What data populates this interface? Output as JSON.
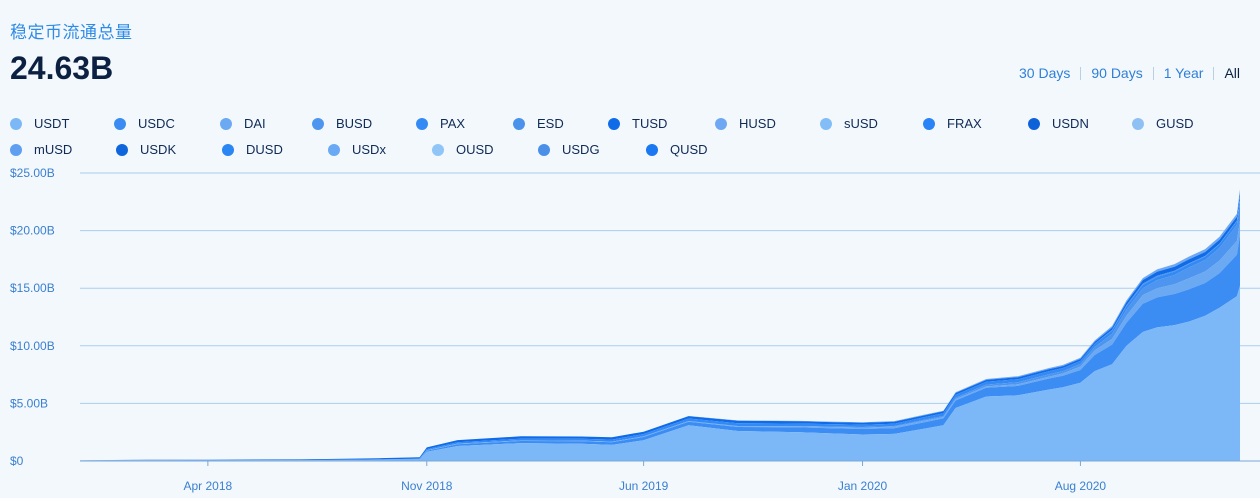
{
  "header": {
    "title": "稳定币流通总量",
    "total": "24.63B"
  },
  "ranges": [
    {
      "label": "30 Days",
      "active": false
    },
    {
      "label": "90 Days",
      "active": false
    },
    {
      "label": "1 Year",
      "active": false
    },
    {
      "label": "All",
      "active": true
    }
  ],
  "legend": [
    {
      "name": "USDT",
      "color": "#7db8f6"
    },
    {
      "name": "USDC",
      "color": "#3a8bf2"
    },
    {
      "name": "DAI",
      "color": "#6ba9f3"
    },
    {
      "name": "BUSD",
      "color": "#4d95ef"
    },
    {
      "name": "PAX",
      "color": "#338af5"
    },
    {
      "name": "ESD",
      "color": "#4a92ea"
    },
    {
      "name": "TUSD",
      "color": "#0f6be8"
    },
    {
      "name": "HUSD",
      "color": "#6fa8f2"
    },
    {
      "name": "sUSD",
      "color": "#82bdf7"
    },
    {
      "name": "FRAX",
      "color": "#2a84f5"
    },
    {
      "name": "USDN",
      "color": "#0e62d9"
    },
    {
      "name": "GUSD",
      "color": "#8fc0f4"
    },
    {
      "name": "mUSD",
      "color": "#5f9ff2"
    },
    {
      "name": "USDK",
      "color": "#0f66dc"
    },
    {
      "name": "DUSD",
      "color": "#2a86f3"
    },
    {
      "name": "USDx",
      "color": "#6aa9f4"
    },
    {
      "name": "OUSD",
      "color": "#90c5f8"
    },
    {
      "name": "USDG",
      "color": "#4a90e8"
    },
    {
      "name": "QUSD",
      "color": "#1a78f0"
    }
  ],
  "chart_data": {
    "type": "area",
    "stacked": true,
    "ylabel": "",
    "xlabel": "",
    "ylim": [
      0,
      25
    ],
    "y_tick_labels": [
      "$0",
      "$5.00B",
      "$10.00B",
      "$15.00B",
      "$20.00B",
      "$25.00B"
    ],
    "y_tick_values": [
      0,
      5,
      10,
      15,
      20,
      25
    ],
    "x_tick_labels": [
      "Apr 2018",
      "Nov 2018",
      "Jun 2019",
      "Jan 2020",
      "Aug 2020"
    ],
    "x_tick_values": [
      "2018-04-01",
      "2018-11-01",
      "2019-06-01",
      "2020-01-01",
      "2020-08-01"
    ],
    "x_range": [
      "2017-11-27",
      "2021-01-04"
    ],
    "x": [
      "2017-11-27",
      "2018-02-01",
      "2018-04-01",
      "2018-07-01",
      "2018-09-15",
      "2018-10-25",
      "2018-11-01",
      "2018-12-01",
      "2019-02-01",
      "2019-04-01",
      "2019-05-01",
      "2019-06-01",
      "2019-07-15",
      "2019-09-01",
      "2019-11-01",
      "2019-12-01",
      "2020-01-01",
      "2020-02-01",
      "2020-03-01",
      "2020-03-20",
      "2020-04-01",
      "2020-05-01",
      "2020-06-01",
      "2020-07-01",
      "2020-07-15",
      "2020-08-01",
      "2020-08-15",
      "2020-09-01",
      "2020-09-15",
      "2020-10-01",
      "2020-10-15",
      "2020-11-01",
      "2020-11-15",
      "2020-12-01",
      "2020-12-15",
      "2021-01-01",
      "2021-01-04"
    ],
    "series": [
      {
        "name": "USDT",
        "color": "#7cb8f7",
        "values": [
          0.05,
          0.06,
          0.05,
          0.06,
          0.07,
          0.1,
          0.8,
          1.3,
          1.55,
          1.5,
          1.4,
          1.8,
          3.1,
          2.6,
          2.5,
          2.4,
          2.3,
          2.35,
          2.8,
          3.1,
          4.6,
          5.6,
          5.7,
          6.2,
          6.4,
          6.8,
          7.8,
          8.4,
          10.0,
          11.2,
          11.6,
          11.8,
          12.1,
          12.6,
          13.3,
          14.3,
          15.2
        ]
      },
      {
        "name": "USDC",
        "color": "#3b8df3",
        "values": [
          0.0,
          0.0,
          0.0,
          0.0,
          0.02,
          0.05,
          0.09,
          0.16,
          0.19,
          0.22,
          0.22,
          0.28,
          0.3,
          0.35,
          0.42,
          0.45,
          0.48,
          0.5,
          0.55,
          0.6,
          0.65,
          0.75,
          0.82,
          0.95,
          1.0,
          1.1,
          1.4,
          1.7,
          2.0,
          2.45,
          2.6,
          2.7,
          2.8,
          2.85,
          3.0,
          3.6,
          4.4
        ]
      },
      {
        "name": "DAI",
        "color": "#6ba9f3",
        "values": [
          0.01,
          0.02,
          0.02,
          0.02,
          0.03,
          0.03,
          0.04,
          0.05,
          0.05,
          0.05,
          0.06,
          0.06,
          0.06,
          0.07,
          0.08,
          0.1,
          0.12,
          0.13,
          0.14,
          0.11,
          0.12,
          0.13,
          0.14,
          0.17,
          0.2,
          0.3,
          0.4,
          0.5,
          0.6,
          0.75,
          0.8,
          0.85,
          0.95,
          1.0,
          1.1,
          1.2,
          1.3
        ]
      },
      {
        "name": "BUSD",
        "color": "#4d95ef",
        "values": [
          0.0,
          0.0,
          0.0,
          0.0,
          0.0,
          0.0,
          0.0,
          0.0,
          0.0,
          0.0,
          0.0,
          0.0,
          0.01,
          0.02,
          0.03,
          0.04,
          0.05,
          0.06,
          0.08,
          0.1,
          0.12,
          0.15,
          0.18,
          0.2,
          0.2,
          0.22,
          0.3,
          0.45,
          0.55,
          0.6,
          0.7,
          0.8,
          0.95,
          1.0,
          1.1,
          1.4,
          1.7
        ]
      },
      {
        "name": "PAX",
        "color": "#338af5",
        "values": [
          0.0,
          0.0,
          0.0,
          0.0,
          0.02,
          0.03,
          0.1,
          0.12,
          0.15,
          0.16,
          0.18,
          0.2,
          0.22,
          0.24,
          0.22,
          0.21,
          0.2,
          0.2,
          0.22,
          0.24,
          0.25,
          0.25,
          0.26,
          0.27,
          0.27,
          0.27,
          0.27,
          0.28,
          0.28,
          0.28,
          0.28,
          0.29,
          0.29,
          0.3,
          0.31,
          0.32,
          0.33
        ]
      },
      {
        "name": "ESD",
        "color": "#4a92ea",
        "values": [
          0,
          0,
          0,
          0,
          0,
          0,
          0,
          0,
          0,
          0,
          0,
          0,
          0,
          0,
          0,
          0,
          0,
          0,
          0,
          0,
          0,
          0,
          0,
          0,
          0,
          0,
          0,
          0.05,
          0.1,
          0.12,
          0.1,
          0.08,
          0.06,
          0.05,
          0.05,
          0.05,
          0.05
        ]
      },
      {
        "name": "TUSD",
        "color": "#0f6be8",
        "values": [
          0.01,
          0.03,
          0.04,
          0.06,
          0.1,
          0.12,
          0.15,
          0.18,
          0.2,
          0.2,
          0.2,
          0.2,
          0.21,
          0.22,
          0.2,
          0.18,
          0.17,
          0.17,
          0.16,
          0.16,
          0.16,
          0.16,
          0.17,
          0.17,
          0.17,
          0.17,
          0.17,
          0.2,
          0.25,
          0.3,
          0.35,
          0.35,
          0.35,
          0.34,
          0.34,
          0.33,
          0.33
        ]
      },
      {
        "name": "HUSD",
        "color": "#6fa8f2",
        "values": [
          0,
          0,
          0,
          0,
          0,
          0,
          0,
          0,
          0,
          0,
          0,
          0,
          0.01,
          0.02,
          0.03,
          0.04,
          0.05,
          0.05,
          0.06,
          0.06,
          0.07,
          0.08,
          0.09,
          0.1,
          0.1,
          0.11,
          0.12,
          0.14,
          0.16,
          0.18,
          0.2,
          0.22,
          0.24,
          0.25,
          0.26,
          0.27,
          0.28
        ]
      }
    ]
  }
}
